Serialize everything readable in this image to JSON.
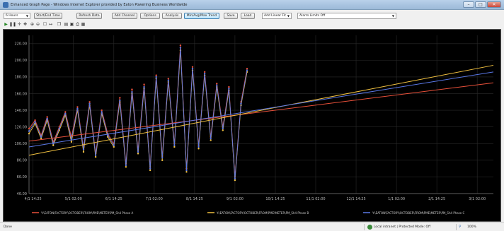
{
  "window": {
    "title": "Enhanced Graph Page - Windows Internet Explorer provided by Eaton Powering Business Worldwide",
    "min_glyph": "–",
    "max_glyph": "□",
    "close_glyph": "✕"
  },
  "toolbar": {
    "range_select": "6 Hours",
    "buttons": [
      "Start/End Time",
      "Refresh Data",
      "Add Channel",
      "Options",
      "Analysis",
      "Min/Avg/Max Trend",
      "Save",
      "Load"
    ],
    "highlighted_index": 5,
    "trend_select": "Add Linear Fit",
    "alarm_select": "Alarm Limits Off"
  },
  "icons": [
    "play-icon",
    "pause-icon",
    "crosshair-icon",
    "pan-icon",
    "zoom-in-icon",
    "zoom-out-icon",
    "checkbox-icon",
    "cursor-icon",
    "copy-icon",
    "chart-icon",
    "save-icon",
    "print-icon",
    "export-icon"
  ],
  "status": {
    "left": "Done",
    "zone": "Local intranet | Protected Mode: Off",
    "zoom": "100%"
  },
  "chart_data": {
    "type": "line",
    "background": "#000000",
    "grid": true,
    "ylim": [
      40,
      230
    ],
    "y_ticks": [
      "40.00",
      "60.00",
      "80.00",
      "100.00",
      "120.00",
      "140.00",
      "160.00",
      "180.00",
      "200.00",
      "220.00"
    ],
    "x_ticks": [
      "4/1 14:25",
      "5/1 02:00",
      "6/1 14:25",
      "7/1 02:00",
      "8/1 14:25",
      "9/1 02:00",
      "10/1 14:25",
      "11/1 02:00",
      "12/1 14:25",
      "1/1 02:00",
      "2/1 14:25",
      "3/1 02:00"
    ],
    "xlim": [
      0,
      11.5
    ],
    "data_x": [
      0,
      0.15,
      0.3,
      0.45,
      0.6,
      0.75,
      0.9,
      1.05,
      1.2,
      1.35,
      1.5,
      1.65,
      1.8,
      1.95,
      2.1,
      2.25,
      2.4,
      2.55,
      2.7,
      2.85,
      3,
      3.15,
      3.3,
      3.45,
      3.6,
      3.75,
      3.9,
      4.05,
      4.2,
      4.35,
      4.5,
      4.65,
      4.8,
      4.95,
      5.1,
      5.25,
      5.4
    ],
    "series": [
      {
        "name": "Y:\\EATON\\FACTORY\\OCTOBER\\FROM\\PME\\METER\\PM_Sh4 Phase A",
        "color": "#e8503a",
        "values": [
          118,
          128,
          110,
          132,
          102,
          120,
          138,
          108,
          144,
          95,
          150,
          88,
          140,
          112,
          100,
          155,
          76,
          165,
          92,
          171,
          72,
          182,
          85,
          178,
          100,
          218,
          70,
          192,
          98,
          186,
          108,
          172,
          120,
          168,
          60,
          150,
          190
        ],
        "fit": [
          103,
          173
        ]
      },
      {
        "name": "Y:\\EATON\\FACTORY\\OCTOBER\\FROM\\PME\\METER\\PM_Sh4 Phase B",
        "color": "#f0c040",
        "values": [
          112,
          124,
          106,
          128,
          98,
          116,
          134,
          102,
          140,
          90,
          146,
          84,
          136,
          108,
          96,
          150,
          72,
          160,
          88,
          166,
          68,
          178,
          80,
          174,
          96,
          212,
          66,
          188,
          94,
          182,
          104,
          168,
          116,
          164,
          56,
          146,
          186
        ],
        "fit": [
          86,
          194
        ]
      },
      {
        "name": "Y:\\EATON\\FACTORY\\OCTOBER\\FROM\\PME\\METER\\PM_Sh4 Phase C",
        "color": "#5a78e6",
        "values": [
          115,
          126,
          108,
          130,
          100,
          118,
          136,
          105,
          142,
          93,
          148,
          86,
          138,
          110,
          98,
          152,
          74,
          162,
          90,
          168,
          70,
          180,
          83,
          176,
          98,
          215,
          68,
          190,
          96,
          184,
          106,
          170,
          118,
          166,
          58,
          148,
          188
        ],
        "fit": [
          96,
          186
        ]
      }
    ]
  }
}
